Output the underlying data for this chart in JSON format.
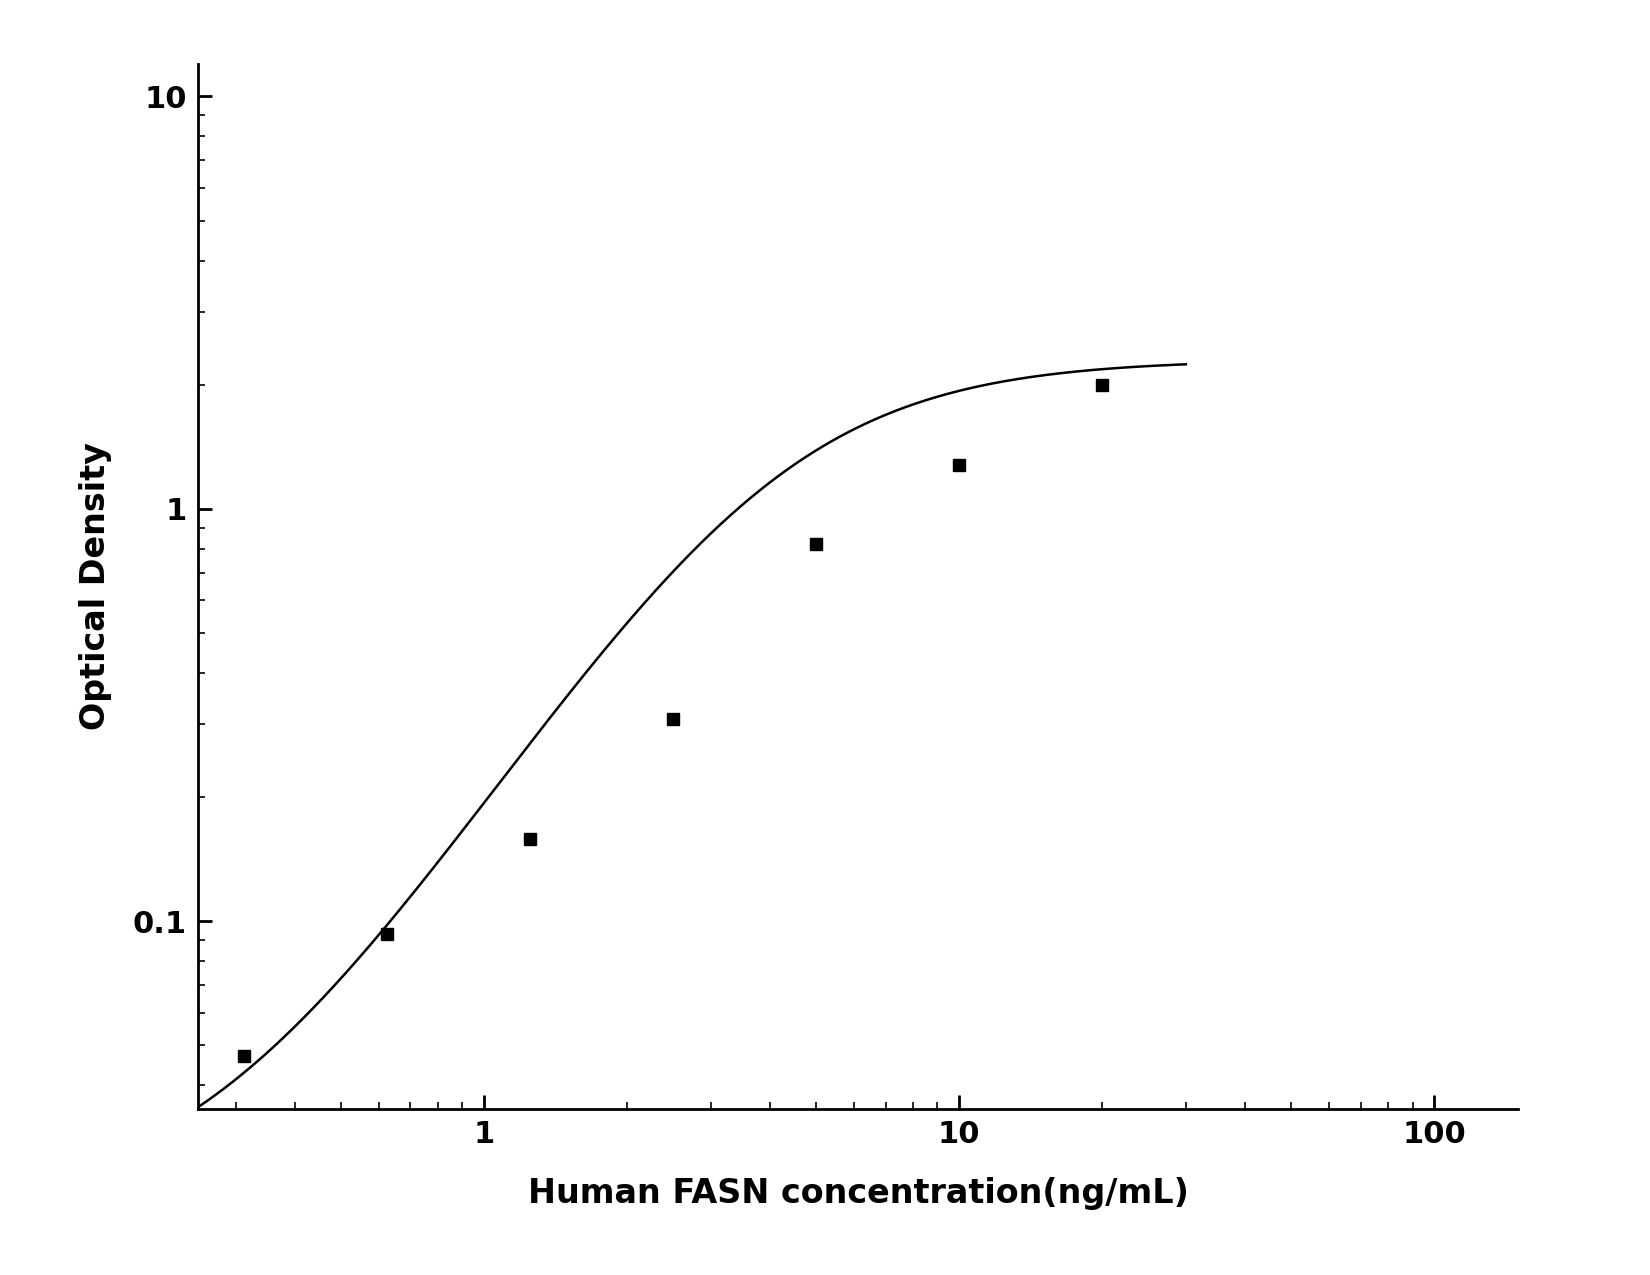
{
  "x_data": [
    0.313,
    0.625,
    1.25,
    2.5,
    5.0,
    10.0,
    20.0
  ],
  "y_data": [
    0.047,
    0.093,
    0.158,
    0.31,
    0.82,
    1.28,
    2.0
  ],
  "xlabel": "Human FASN concentration(ng/mL)",
  "ylabel": "Optical Density",
  "xlim_log": [
    0.25,
    150
  ],
  "ylim_log": [
    0.035,
    12
  ],
  "marker": "s",
  "marker_color": "black",
  "marker_size": 9,
  "line_color": "black",
  "line_width": 1.8,
  "background_color": "#ffffff",
  "label_fontsize": 24,
  "tick_fontsize": 22,
  "label_fontweight": "bold"
}
